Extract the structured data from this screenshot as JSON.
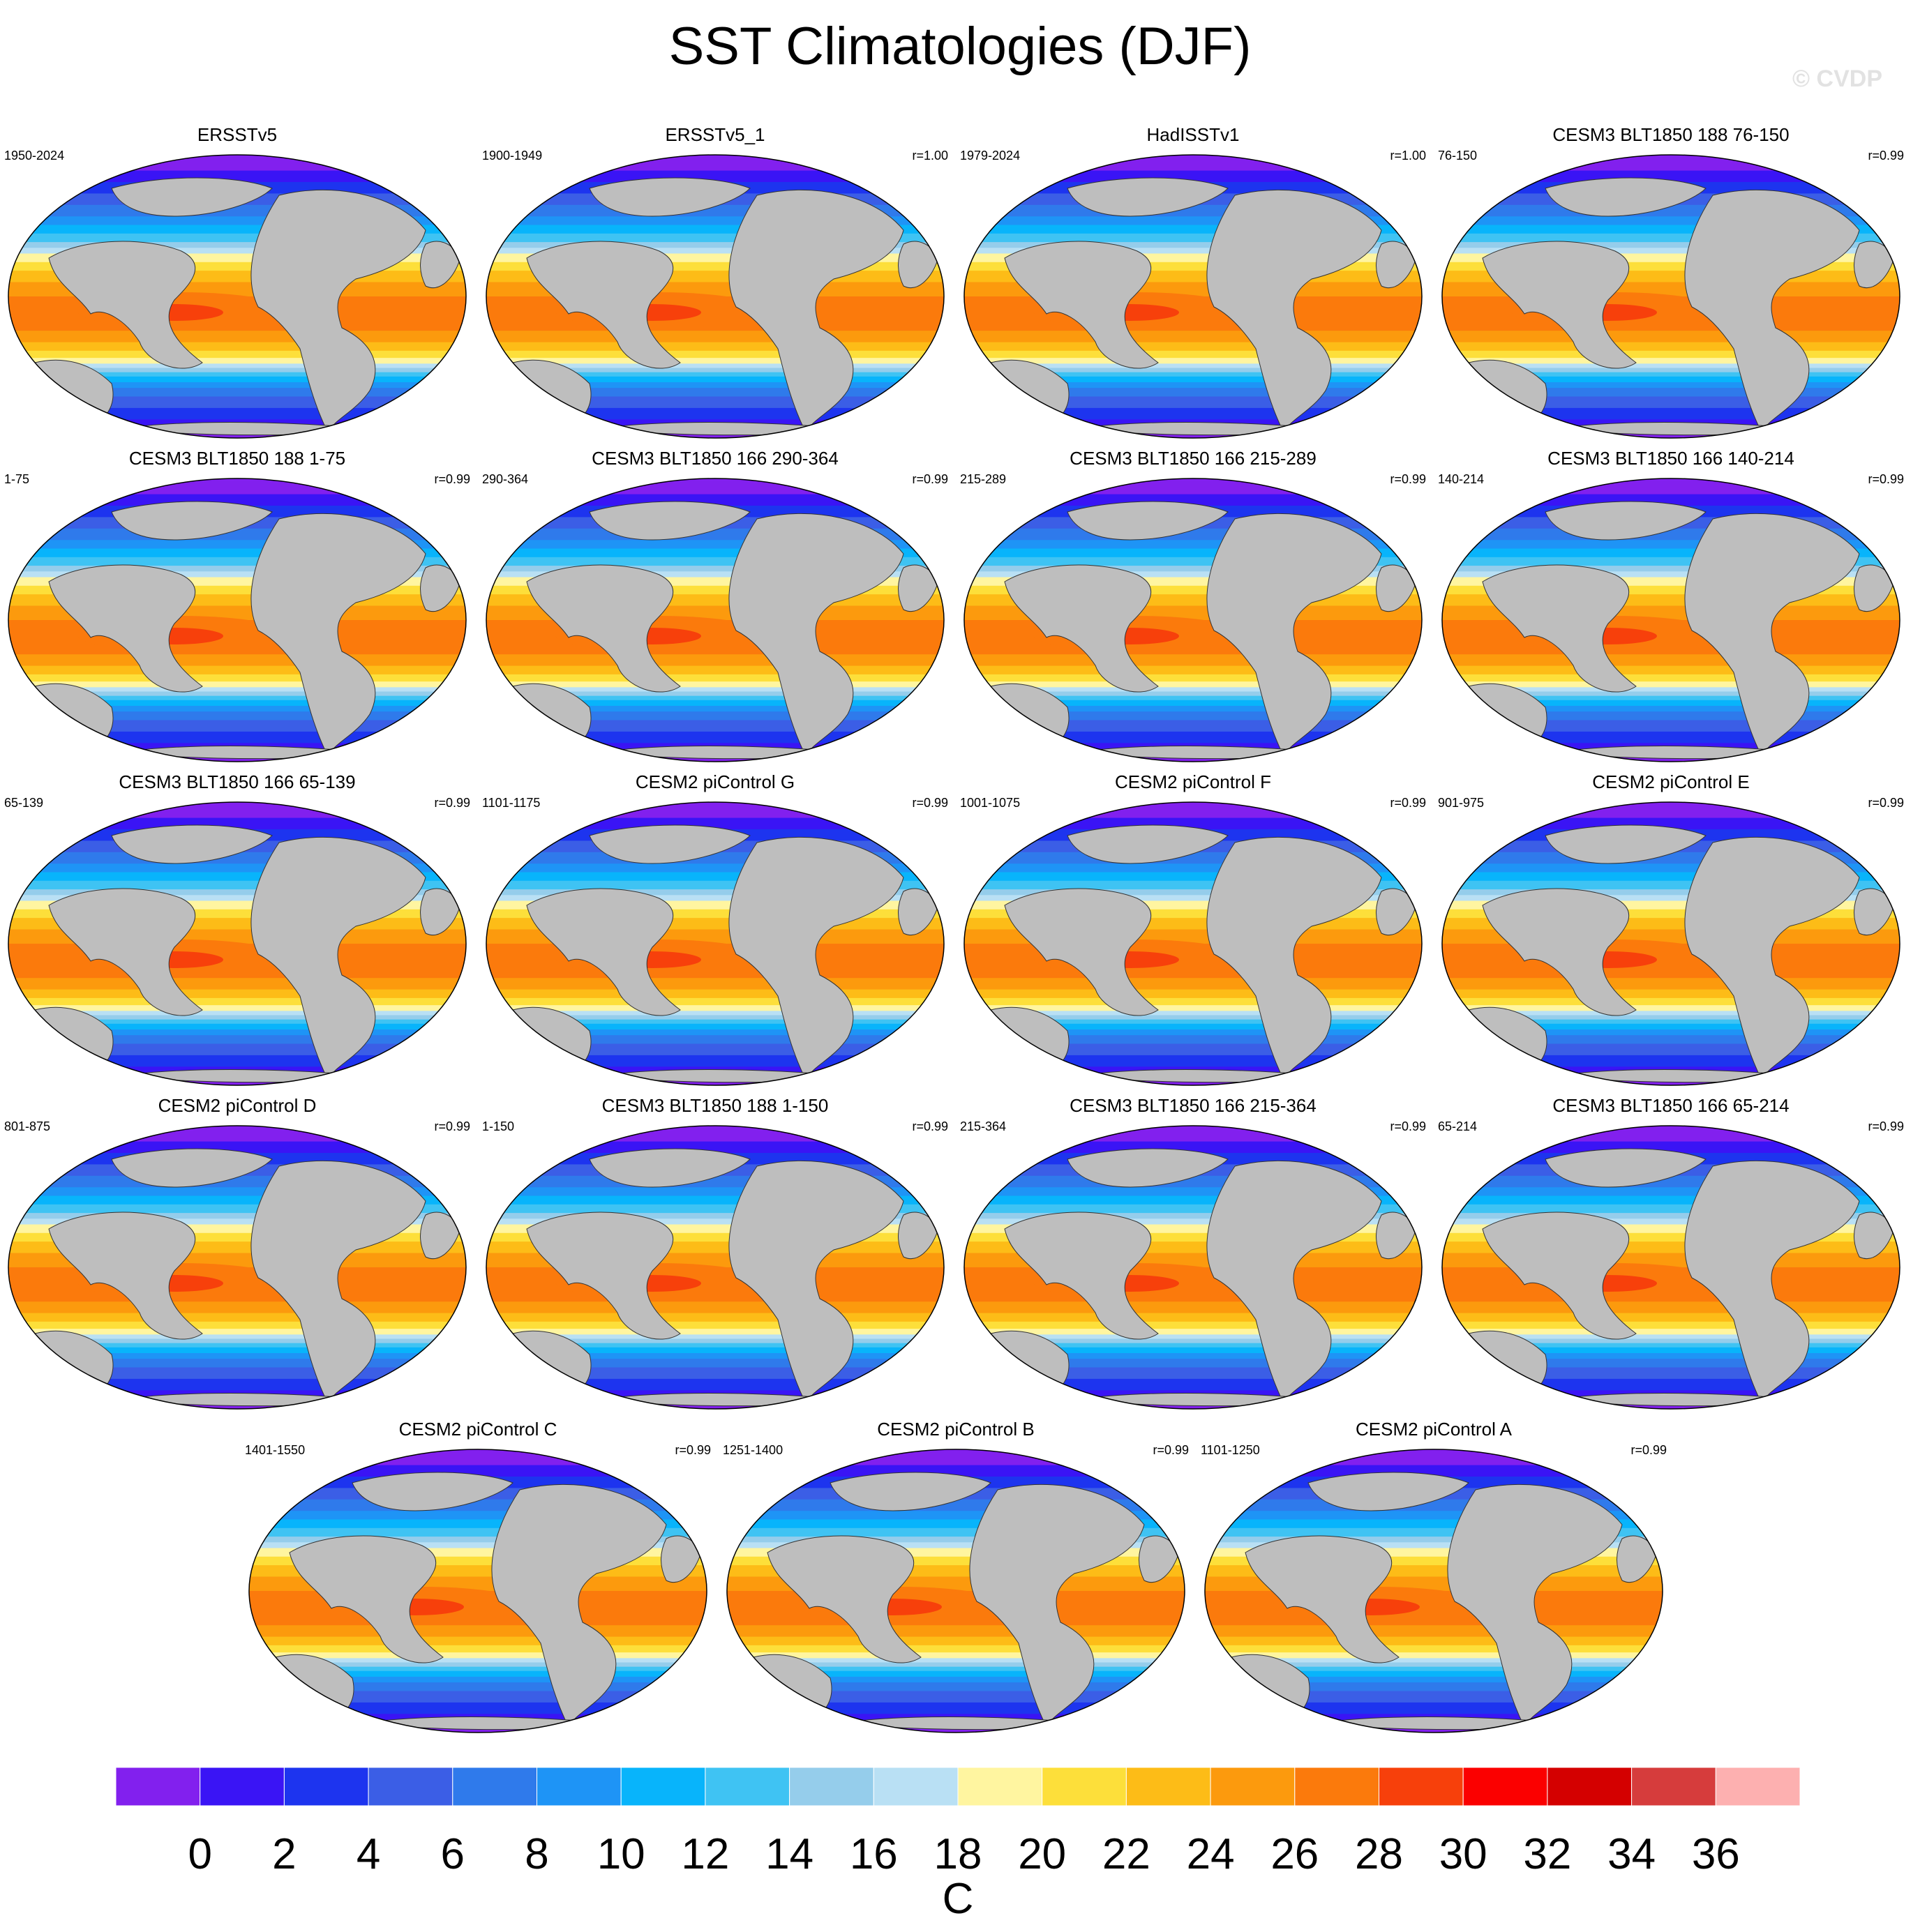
{
  "title": "SST Climatologies (DJF)",
  "watermark": "© CVDP",
  "colorbar": {
    "units": "C",
    "tick_labels": [
      "0",
      "2",
      "4",
      "6",
      "8",
      "10",
      "12",
      "14",
      "16",
      "18",
      "20",
      "22",
      "24",
      "26",
      "28",
      "30",
      "32",
      "34",
      "36"
    ],
    "colors": [
      "#8220ee",
      "#3a14f5",
      "#1d34ef",
      "#3b5ee6",
      "#2f7aeb",
      "#1e94f6",
      "#08b4fb",
      "#3fc3f3",
      "#95cdeb",
      "#b9e0f4",
      "#fff5a0",
      "#fddf3a",
      "#fdbc17",
      "#fc9a0d",
      "#fb7a0c",
      "#f7400b",
      "#fb0000",
      "#d40000",
      "#d63c3c",
      "#fdb0b0"
    ]
  },
  "chart_data": {
    "type": "heatmap",
    "title": "SST Climatologies (DJF)",
    "units": "C",
    "levels": [
      0,
      2,
      4,
      6,
      8,
      10,
      12,
      14,
      16,
      18,
      20,
      22,
      24,
      26,
      28,
      30,
      32,
      34,
      36
    ],
    "panels": [
      {
        "name": "ERSSTv5",
        "period": "1950-2024",
        "r": ""
      },
      {
        "name": "ERSSTv5_1",
        "period": "1900-1949",
        "r": "r=1.00"
      },
      {
        "name": "HadISSTv1",
        "period": "1979-2024",
        "r": "r=1.00"
      },
      {
        "name": "CESM3 BLT1850 188 76-150",
        "period": "76-150",
        "r": "r=0.99"
      },
      {
        "name": "CESM3 BLT1850 188 1-75",
        "period": "1-75",
        "r": "r=0.99"
      },
      {
        "name": "CESM3 BLT1850 166 290-364",
        "period": "290-364",
        "r": "r=0.99"
      },
      {
        "name": "CESM3 BLT1850 166 215-289",
        "period": "215-289",
        "r": "r=0.99"
      },
      {
        "name": "CESM3 BLT1850 166 140-214",
        "period": "140-214",
        "r": "r=0.99"
      },
      {
        "name": "CESM3 BLT1850 166 65-139",
        "period": "65-139",
        "r": "r=0.99"
      },
      {
        "name": "CESM2 piControl G",
        "period": "1101-1175",
        "r": "r=0.99"
      },
      {
        "name": "CESM2 piControl F",
        "period": "1001-1075",
        "r": "r=0.99"
      },
      {
        "name": "CESM2 piControl E",
        "period": "901-975",
        "r": "r=0.99"
      },
      {
        "name": "CESM2 piControl D",
        "period": "801-875",
        "r": "r=0.99"
      },
      {
        "name": "CESM3 BLT1850 188 1-150",
        "period": "1-150",
        "r": "r=0.99"
      },
      {
        "name": "CESM3 BLT1850 166 215-364",
        "period": "215-364",
        "r": "r=0.99"
      },
      {
        "name": "CESM3 BLT1850 166 65-214",
        "period": "65-214",
        "r": "r=0.99"
      },
      {
        "name": "CESM2 piControl C",
        "period": "1401-1550",
        "r": "r=0.99"
      },
      {
        "name": "CESM2 piControl B",
        "period": "1251-1400",
        "r": "r=0.99"
      },
      {
        "name": "CESM2 piControl A",
        "period": "1101-1250",
        "r": "r=0.99"
      }
    ]
  }
}
